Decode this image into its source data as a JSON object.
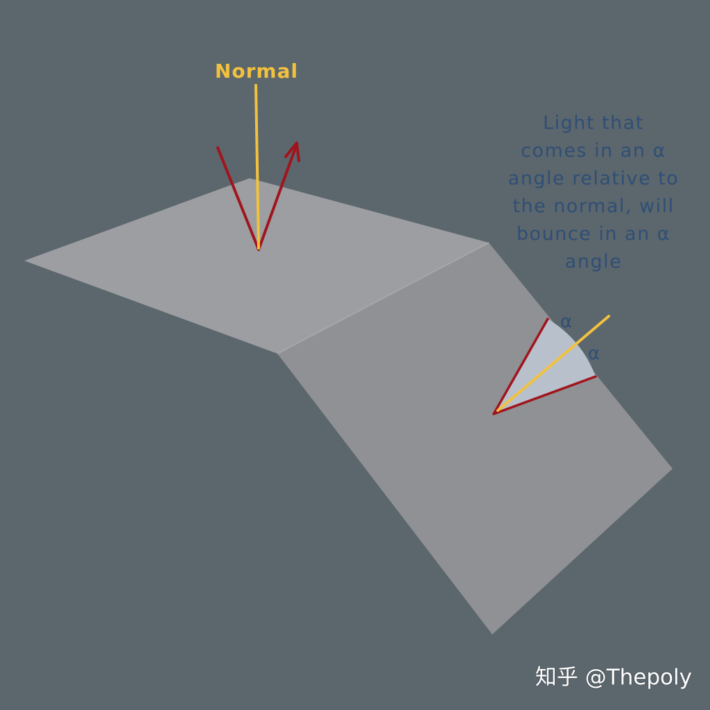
{
  "normal_label": "Normal",
  "explanation_lines": [
    "Light that",
    "comes in an α",
    "angle relative to",
    "the normal, will",
    "bounce in an α",
    "angle"
  ],
  "angle_labels": [
    "α",
    "α"
  ],
  "watermark": "知乎 @Thepoly",
  "colors": {
    "background": "#5c666d",
    "top_plane": "#9c9ea2",
    "side_plane": "#8f9194",
    "normal": "#f2c23e",
    "ray": "#a1141c",
    "angle_fill": "#b8c0cc",
    "label_text": "#2f4f75"
  }
}
